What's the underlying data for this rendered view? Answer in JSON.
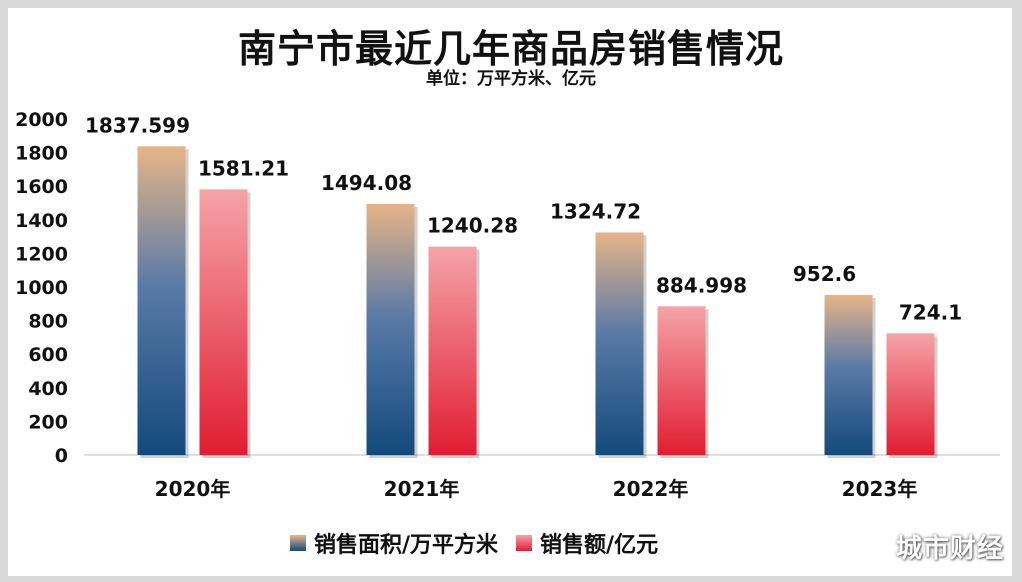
{
  "title": "南宁市最近几年商品房销售情况",
  "subtitle": "单位：万平方米、亿元",
  "watermark": "城市财经",
  "colors": {
    "area_bottom": "#134a7c",
    "area_top": "#e6b588",
    "amount_bottom": "#e11d32",
    "amount_top": "#f5a3a8"
  },
  "chart_data": {
    "type": "bar",
    "title": "南宁市最近几年商品房销售情况",
    "subtitle": "单位：万平方米、亿元",
    "categories": [
      "2020年",
      "2021年",
      "2022年",
      "2023年"
    ],
    "series": [
      {
        "name": "销售面积/万平方米",
        "values": [
          1837.599,
          1494.08,
          1324.72,
          952.6
        ],
        "labels": [
          "1837.599",
          "1494.08",
          "1324.72",
          "952.6"
        ]
      },
      {
        "name": "销售额/亿元",
        "values": [
          1581.21,
          1240.28,
          884.998,
          724.1
        ],
        "labels": [
          "1581.21",
          "1240.28",
          "884.998",
          "724.1"
        ]
      }
    ],
    "ylim": [
      0,
      2000
    ],
    "yticks": [
      0,
      200,
      400,
      600,
      800,
      1000,
      1200,
      1400,
      1600,
      1800,
      2000
    ],
    "grid": false,
    "legend": "bottom-center"
  }
}
